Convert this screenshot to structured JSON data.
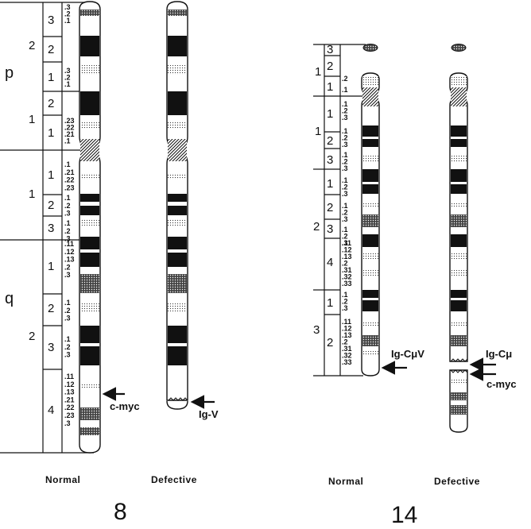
{
  "chromosome_8": {
    "number": "8",
    "arm_p": "p",
    "arm_q": "q",
    "normal_caption": "Normal",
    "defective_caption": "Defective",
    "p_regions": [
      "2",
      "1"
    ],
    "q_regions": [
      "1",
      "2"
    ],
    "p_bands": [
      {
        "band": "3",
        "subs": [
          ".3",
          ".2",
          ".1"
        ]
      },
      {
        "band": "2",
        "subs": []
      },
      {
        "band": "1",
        "subs": [
          ".3",
          ".2",
          ".1"
        ]
      },
      {
        "band": "2",
        "subs": []
      },
      {
        "band": "1",
        "subs": [
          ".23",
          ".22",
          ".21",
          ".1"
        ]
      }
    ],
    "q_bands": [
      {
        "band": "1",
        "subs": [
          ".1",
          ".21",
          ".22",
          ".23"
        ]
      },
      {
        "band": "2",
        "subs": [
          ".1",
          ".2",
          ".3"
        ]
      },
      {
        "band": "3",
        "subs": [
          ".1",
          ".2",
          ".3"
        ]
      },
      {
        "band": "1",
        "subs": [
          ".11",
          ".12",
          ".13",
          ".2",
          ".3"
        ]
      },
      {
        "band": "2",
        "subs": [
          ".1",
          ".2",
          ".3"
        ]
      },
      {
        "band": "3",
        "subs": [
          ".1",
          ".2",
          ".3"
        ]
      },
      {
        "band": "4",
        "subs": [
          ".11",
          ".12",
          ".13",
          ".21",
          ".22",
          ".23",
          ".3"
        ]
      }
    ],
    "normal_callout": "c-myc",
    "defective_callout": "Ig-V"
  },
  "chromosome_14": {
    "number": "14",
    "normal_caption": "Normal",
    "defective_caption": "Defective",
    "p_regions": [
      "1"
    ],
    "q_regions": [
      "1",
      "2",
      "3"
    ],
    "p_bands": [
      {
        "band": "3",
        "subs": []
      },
      {
        "band": "2",
        "subs": []
      },
      {
        "band": "1",
        "subs": [
          ".2",
          ".1"
        ]
      }
    ],
    "q_bands": [
      {
        "band": "1",
        "subs": [
          ".1",
          ".2",
          ".3"
        ]
      },
      {
        "band": "2",
        "subs": [
          ".1",
          ".2",
          ".3"
        ]
      },
      {
        "band": "3",
        "subs": [
          ".1",
          ".2",
          ".3"
        ]
      },
      {
        "band": "1",
        "subs": [
          ".1",
          ".2",
          ".3"
        ]
      },
      {
        "band": "2",
        "subs": [
          ".1",
          ".2",
          ".3"
        ]
      },
      {
        "band": "3",
        "subs": [
          ".1",
          ".2",
          ".3"
        ]
      },
      {
        "band": "4",
        "subs": [
          ".11",
          ".12",
          ".13",
          ".2",
          ".31",
          ".32",
          ".33"
        ]
      },
      {
        "band": "1",
        "subs": [
          ".1",
          ".2",
          ".3"
        ]
      },
      {
        "band": "2",
        "subs": [
          ".11",
          ".12",
          ".13",
          ".2",
          ".31",
          ".32",
          ".33"
        ]
      }
    ],
    "normal_callout": "Ig-CμV",
    "defective_callout_top": "Ig-Cμ",
    "defective_callout_bottom": "c-myc"
  },
  "colors": {
    "ink": "#111111",
    "background": "#ffffff"
  }
}
